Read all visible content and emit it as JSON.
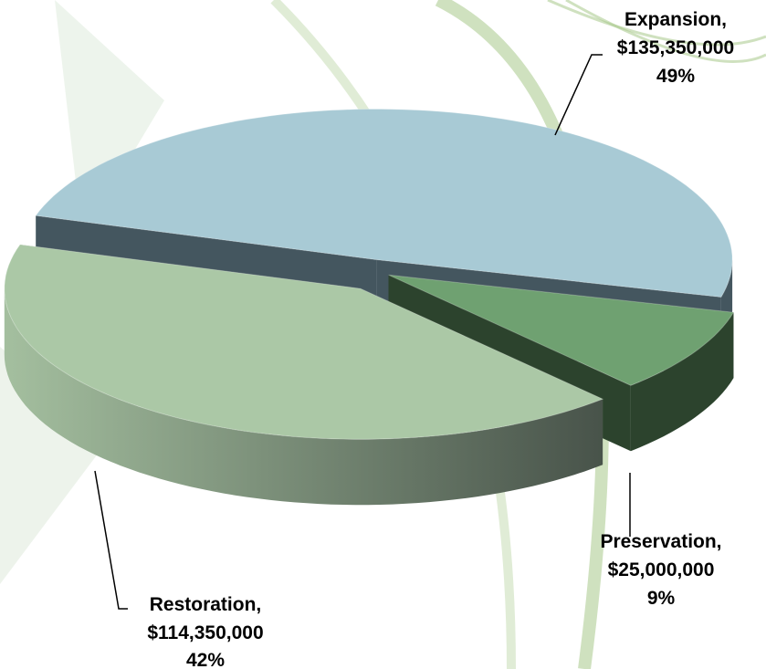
{
  "chart_data": {
    "type": "pie",
    "categories": [
      "Expansion,",
      "Preservation,",
      "Restoration,"
    ],
    "values": [
      135350000,
      25000000,
      114350000
    ],
    "value_labels": [
      "$135,350,000",
      "$25,000,000",
      "$114,350,000"
    ],
    "percent_labels": [
      "49%",
      "9%",
      "42%"
    ],
    "colors": [
      "#a8cad5",
      "#6fa171",
      "#abc8a6"
    ],
    "side_colors": [
      "#44565f",
      "#2c432d",
      "#7a8f74"
    ]
  }
}
